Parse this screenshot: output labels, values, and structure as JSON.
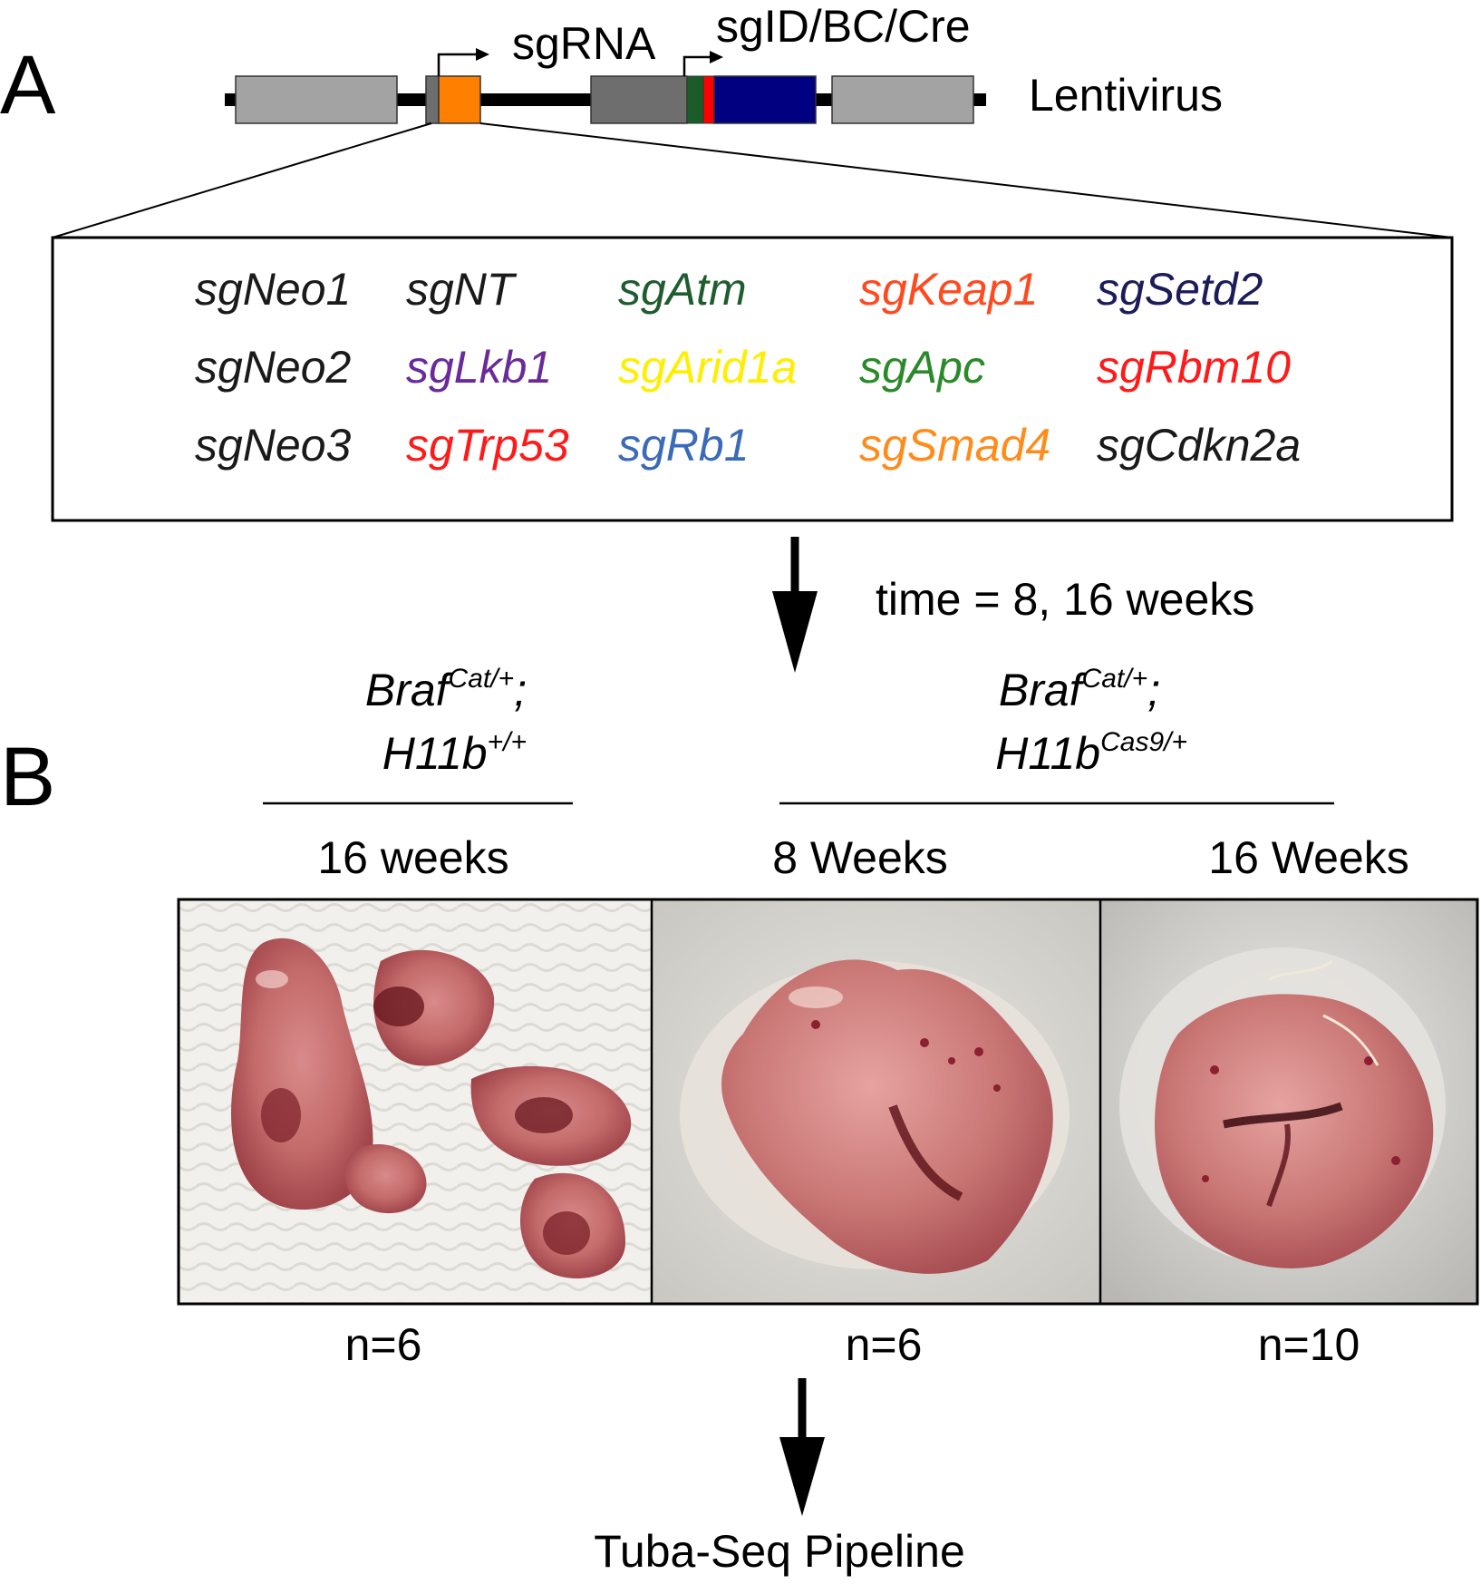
{
  "panel_a": {
    "label": "A",
    "sgrna_label": "sgRNA",
    "sgid_label": "sgID/BC/Cre",
    "vector_label": "Lentivirus",
    "colors": {
      "grey_block": "#a0a0a0",
      "dark_grey_block": "#6e6e6e",
      "sgrna_block": "#ff8000",
      "sgid_green": "#1a5c2a",
      "barcode_red": "#ff0000",
      "cre_blue": "#000080"
    },
    "sgrnas": [
      {
        "name": "sgNeo1",
        "color": "#1a1a1a"
      },
      {
        "name": "sgNT",
        "color": "#1a1a1a"
      },
      {
        "name": "sgAtm",
        "color": "#1f5c2e"
      },
      {
        "name": "sgKeap1",
        "color": "#ff4a1f"
      },
      {
        "name": "sgSetd2",
        "color": "#1c1c5a"
      },
      {
        "name": "sgNeo2",
        "color": "#1a1a1a"
      },
      {
        "name": "sgLkb1",
        "color": "#6a2a9a"
      },
      {
        "name": "sgArid1a",
        "color": "#ffee00"
      },
      {
        "name": "sgApc",
        "color": "#2a8a2a"
      },
      {
        "name": "sgRbm10",
        "color": "#ff1a1a"
      },
      {
        "name": "sgNeo3",
        "color": "#1a1a1a"
      },
      {
        "name": "sgTrp53",
        "color": "#ff1a1a"
      },
      {
        "name": "sgRb1",
        "color": "#3a6ab8"
      },
      {
        "name": "sgSmad4",
        "color": "#ff8c1a"
      },
      {
        "name": "sgCdkn2a",
        "color": "#1a1a1a"
      }
    ],
    "time_label": "time = 8, 16 weeks"
  },
  "panel_b": {
    "label": "B",
    "control": {
      "gene1": "Braf",
      "sup1": "Cat/+",
      "semi": ";",
      "gene2": "H11b",
      "sup2": "+/+"
    },
    "cas9": {
      "gene1": "Braf",
      "sup1": "Cat/+",
      "semi": ";",
      "gene2": "H11b",
      "sup2": "Cas9/+"
    },
    "columns": [
      {
        "timepoint": "16 weeks",
        "n": "n=6"
      },
      {
        "timepoint": "8 Weeks",
        "n": "n=6"
      },
      {
        "timepoint": "16 Weeks",
        "n": "n=10"
      }
    ],
    "final_step": "Tuba-Seq Pipeline"
  }
}
